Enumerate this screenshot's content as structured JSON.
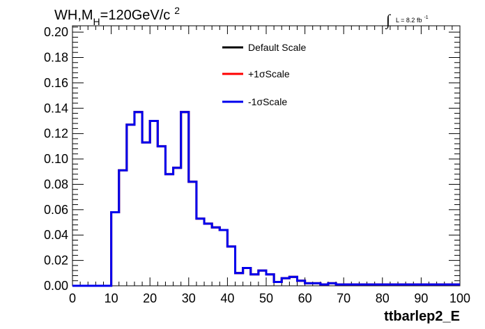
{
  "header": {
    "title_main": "WH,M",
    "title_sub": "H",
    "title_rest": "=120GeV/c",
    "title_sup": "2",
    "lumi_integral": "∫",
    "lumi_text": "L = 8.2 fb",
    "lumi_sup": "-1"
  },
  "chart_data": {
    "type": "line",
    "xlabel": "ttbarlep2_E",
    "ylabel": "",
    "xlim": [
      0,
      100
    ],
    "ylim": [
      0,
      0.205
    ],
    "x_ticks": [
      "0",
      "10",
      "20",
      "30",
      "40",
      "50",
      "60",
      "70",
      "80",
      "90",
      "100"
    ],
    "y_ticks": [
      "0.00",
      "0.02",
      "0.04",
      "0.06",
      "0.08",
      "0.10",
      "0.12",
      "0.14",
      "0.16",
      "0.18",
      "0.20"
    ],
    "bin_width": 2,
    "bin_edges_start": 0,
    "legend": [
      "Default Scale",
      "+1σScale",
      "-1σScale"
    ],
    "legend_position": "top-center",
    "series": [
      {
        "name": "Default Scale",
        "color": "#000000",
        "values": [
          0,
          0,
          0,
          0,
          0,
          0.058,
          0.091,
          0.127,
          0.137,
          0.113,
          0.13,
          0.11,
          0.088,
          0.093,
          0.137,
          0.082,
          0.053,
          0.049,
          0.046,
          0.044,
          0.031,
          0.01,
          0.014,
          0.009,
          0.012,
          0.009,
          0.003,
          0.006,
          0.007,
          0.004,
          0.002,
          0.002,
          0.001,
          0.002,
          0.001,
          0.001,
          0.001,
          0.001,
          0.001,
          0.001,
          0.001,
          0.001,
          0.001,
          0.001,
          0.001,
          0.001,
          0.001,
          0.001,
          0.001,
          0.001
        ]
      },
      {
        "name": "+1σScale",
        "color": "#ff0000",
        "values": [
          0,
          0,
          0,
          0,
          0,
          0.058,
          0.091,
          0.127,
          0.137,
          0.113,
          0.13,
          0.11,
          0.088,
          0.093,
          0.137,
          0.082,
          0.053,
          0.049,
          0.046,
          0.044,
          0.031,
          0.01,
          0.014,
          0.009,
          0.012,
          0.009,
          0.003,
          0.006,
          0.007,
          0.004,
          0.002,
          0.002,
          0.001,
          0.002,
          0.001,
          0.001,
          0.001,
          0.001,
          0.001,
          0.001,
          0.001,
          0.001,
          0.001,
          0.001,
          0.001,
          0.001,
          0.001,
          0.001,
          0.001,
          0.001
        ]
      },
      {
        "name": "-1σScale",
        "color": "#0000ee",
        "values": [
          0,
          0,
          0,
          0,
          0,
          0.058,
          0.091,
          0.127,
          0.137,
          0.113,
          0.13,
          0.11,
          0.088,
          0.093,
          0.137,
          0.082,
          0.053,
          0.049,
          0.046,
          0.044,
          0.031,
          0.01,
          0.014,
          0.009,
          0.012,
          0.009,
          0.003,
          0.006,
          0.007,
          0.004,
          0.002,
          0.002,
          0.001,
          0.002,
          0.001,
          0.001,
          0.001,
          0.001,
          0.001,
          0.001,
          0.001,
          0.001,
          0.001,
          0.001,
          0.001,
          0.001,
          0.001,
          0.001,
          0.001,
          0.001
        ]
      }
    ]
  }
}
